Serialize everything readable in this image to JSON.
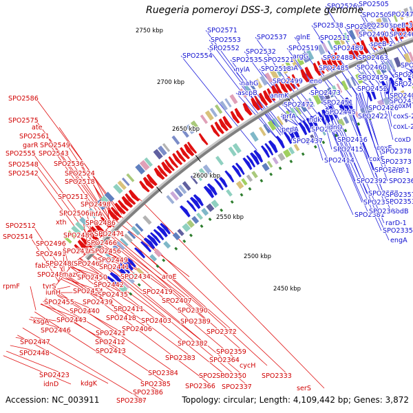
{
  "title": "Ruegeria pomeroyi DSS-3, complete genome",
  "footer": {
    "accession": "Accession: NC_003911",
    "summary": "Topology: circular; Length: 4,109,442 bp; Genes: 3,872"
  },
  "colors": {
    "forward": "#1a1adc",
    "reverse": "#e01010",
    "backbone": "#808080",
    "tick": "#2e7d2e"
  },
  "ticks": [
    "2750 kbp",
    "2700 kbp",
    "2650 kbp",
    "2600 kbp",
    "2550 kbp",
    "2500 kbp",
    "2450 kbp"
  ],
  "genes_forward": [
    "SPO2526",
    "SPO2505",
    "SPO2503",
    "SPO2475",
    "SPO2538",
    "SPO2522",
    "SPO2502",
    "speB-3",
    "SPO2571",
    "SPO2553",
    "SPO2537",
    "glnE",
    "SPO2511",
    "SPO2490",
    "SPO2465",
    "SPO2552",
    "SPO2532",
    "SPO2519",
    "SPO2489",
    "speB-2",
    "SPO2554",
    "SPO2535",
    "SPO2521",
    "argG",
    "SPO2488",
    "SPO2463",
    "nylA",
    "scpA",
    "SPO2485",
    "SPO2460",
    "SPO2432",
    "SPO2518",
    "SPO2459",
    "SPO2428",
    "nahG",
    "SPO2499",
    "eno",
    "SPO2427",
    "ascpB",
    "anmK",
    "SPO2473",
    "SPO2452",
    "SPO2431",
    "SPO2409",
    "SPO2472",
    "SPO2451",
    "coxM",
    "SPO2426",
    "prfA",
    "ndk",
    "SPO2445",
    "SPO2422",
    "coxS-2",
    "pepA",
    "SPO2438",
    "idnO",
    "coxL-2",
    "SPO2437",
    "SPO2416",
    "coxD",
    "SPO2415",
    "coxE",
    "SPO2414",
    "coxF",
    "SPO2378",
    "SPO2373",
    "SPO2393",
    "serB-1",
    "SPO2392",
    "SPO2362",
    "SPO2377",
    "SPO2357",
    "SPO2371",
    "SPO2353",
    "SPO2381",
    "SPO2361",
    "sodB",
    "rarD-1",
    "SPO2335",
    "engA"
  ],
  "genes_reverse": [
    "SPO2586",
    "SPO2575",
    "ate",
    "SPO2561",
    "garR",
    "SPO2549",
    "SPO2555",
    "SPO2543",
    "SPO2548",
    "SPO2536",
    "SPO2542",
    "SPO2524",
    "SPO2518",
    "SPO2513",
    "SPO2498",
    "SPO2506",
    "ihfA",
    "SPO2512",
    "xth",
    "SPO2486",
    "SPO2514",
    "SPO2487",
    "SPO2471",
    "SPO2496",
    "SPO2466",
    "SPO2491",
    "SPO2476",
    "SPO2456",
    "fabH-2",
    "SPO2480",
    "SPO2462",
    "SPO2449",
    "SPO2482",
    "mazG",
    "SPO2441",
    "rpmF",
    "tyrS",
    "SPO2450",
    "SPO2434",
    "aroE",
    "SPO2442",
    "iunH",
    "SPO2454",
    "SPO2435",
    "SPO2419",
    "SPO2455",
    "SPO2439",
    "SPO2407",
    "SPO2440",
    "SPO2411",
    "SPO2390",
    "ksgA",
    "SPO2443",
    "SPO2418",
    "SPO2403",
    "SPO2389",
    "SPO2446",
    "SPO2406",
    "SPO2372",
    "SPO2447",
    "SPO2421",
    "SPO2412",
    "SPO2448",
    "SPO2382",
    "SPO2413",
    "SPO2359",
    "SPO2383",
    "SPO2364",
    "SPO2423",
    "kdgK",
    "SPO2384",
    "cycH",
    "idnD",
    "SPO2385",
    "SPO2365",
    "SPO2350",
    "SPO2333",
    "SPO2386",
    "SPO2366",
    "SPO2337",
    "serS",
    "SPO2387"
  ]
}
